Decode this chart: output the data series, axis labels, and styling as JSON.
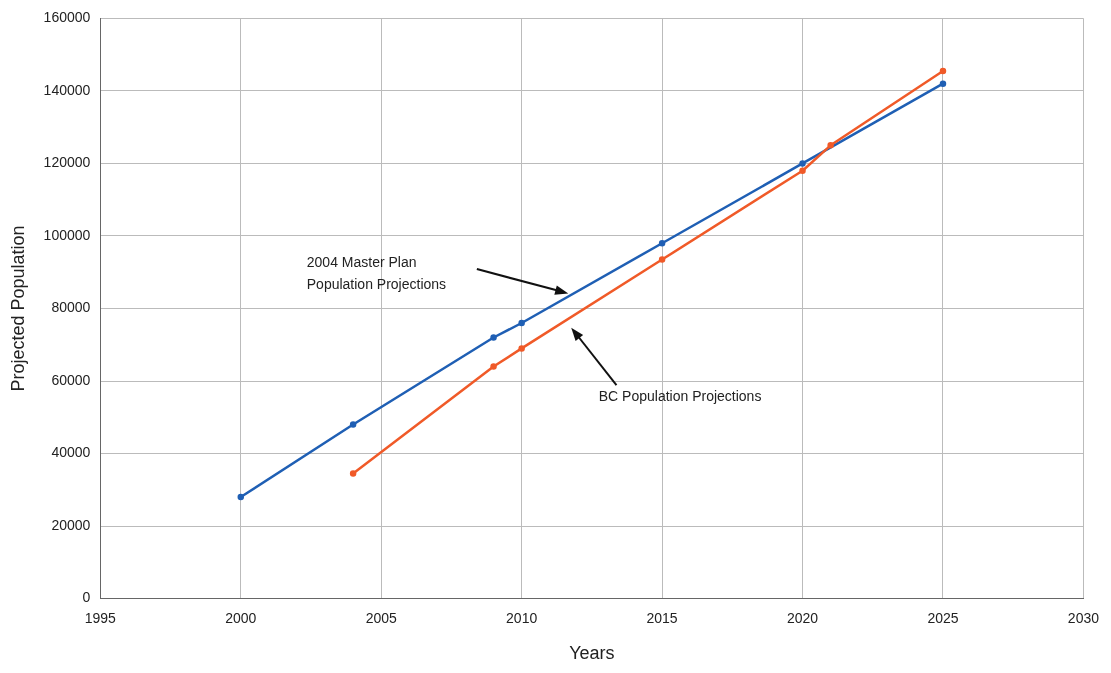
{
  "chart_data": {
    "type": "line",
    "xlabel": "Years",
    "ylabel": "Projected Population",
    "xlim": [
      1995,
      2030
    ],
    "xticks": [
      1995,
      2000,
      2005,
      2010,
      2015,
      2020,
      2025,
      2030
    ],
    "ylim": [
      0,
      160000
    ],
    "yticks": [
      0,
      20000,
      40000,
      60000,
      80000,
      100000,
      120000,
      140000,
      160000
    ],
    "series": [
      {
        "color": "#1f5fb4",
        "x": [
          2000,
          2004,
          2009,
          2010,
          2015,
          2020,
          2025
        ],
        "values": [
          28000,
          48000,
          72000,
          76000,
          98000,
          120000,
          142000
        ]
      },
      {
        "color": "#f05a28",
        "x": [
          2004,
          2009,
          2010,
          2015,
          2020,
          2021,
          2025
        ],
        "values": [
          34500,
          64000,
          69000,
          93500,
          118000,
          125000,
          145500
        ]
      }
    ],
    "annotations": [
      "2004 Master Plan\nPopulation Projections",
      "BC Population Projections"
    ],
    "grid": true,
    "legend": false,
    "marker": "circle",
    "line_style": "solid"
  }
}
